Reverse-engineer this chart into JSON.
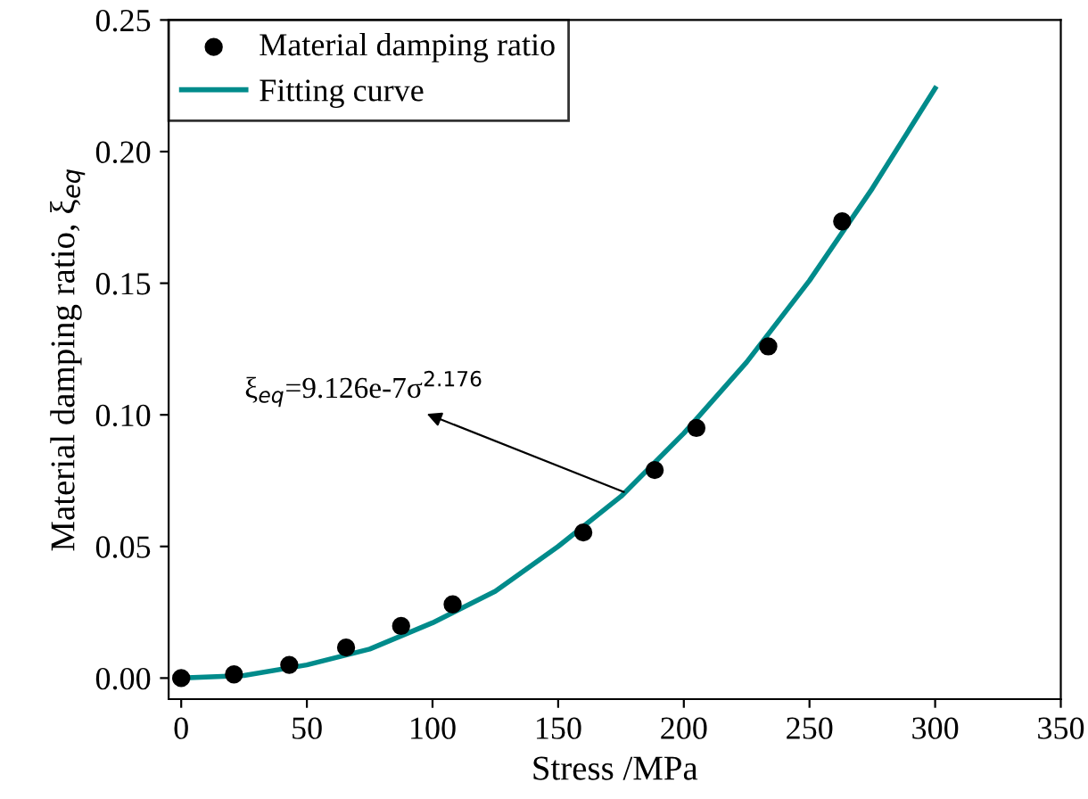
{
  "chart_data": {
    "type": "scatter",
    "xlabel": "Stress /MPa",
    "ylabel": "Material damping ratio, ξ$_{eq}$",
    "series": [
      {
        "name": "Material damping ratio",
        "color": "#000000",
        "marker": "circle",
        "x": [
          0,
          21,
          43,
          65.6,
          87.5,
          108,
          160,
          188.4,
          205,
          233.6,
          263
        ],
        "values": [
          0,
          0.0014,
          0.005,
          0.0116,
          0.0198,
          0.028,
          0.0553,
          0.079,
          0.095,
          0.126,
          0.1735
        ]
      },
      {
        "name": "Fitting curve",
        "type": "line",
        "color": "#008b8b",
        "line_style": "solid",
        "x": [
          0,
          25,
          50,
          75,
          100,
          125,
          150,
          175,
          200,
          225,
          250,
          275,
          300
        ],
        "values": [
          0,
          0.001,
          0.005,
          0.011,
          0.021,
          0.033,
          0.05,
          0.069,
          0.093,
          0.12,
          0.151,
          0.186,
          0.224
        ]
      }
    ],
    "annotations": [
      {
        "text": "ξ$_{eq}$=9.126e-7σ$^{2.176}$",
        "x": 178,
        "y": 0.07
      }
    ],
    "xlim": [
      -5,
      350
    ],
    "xticks": [
      0,
      50,
      100,
      150,
      200,
      250,
      300,
      350
    ],
    "ylim": [
      -0.008,
      0.25
    ],
    "yticks": [
      {
        "value": 0,
        "label": "0.00"
      },
      {
        "value": 0.05,
        "label": "0.05"
      },
      {
        "value": 0.1,
        "label": "0.10"
      },
      {
        "value": 0.15,
        "label": "0.15"
      },
      {
        "value": 0.2,
        "label": "0.20"
      },
      {
        "value": 0.25,
        "label": "0.25"
      }
    ],
    "grid": false,
    "legend": "top left"
  }
}
